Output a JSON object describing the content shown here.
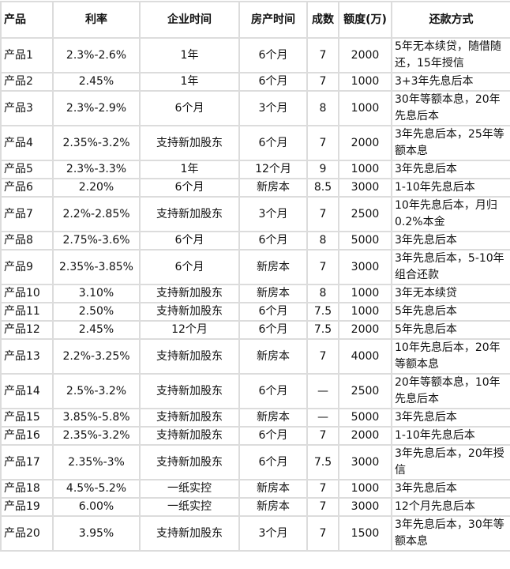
{
  "headers": [
    "产品",
    "利率",
    "企业时间",
    "房产时间",
    "成数",
    "额度(万)",
    "还款方式"
  ],
  "rows": [
    [
      "产品1",
      "2.3%-2.6%",
      "1年",
      "6个月",
      "7",
      "2000",
      "5年无本续贷，随借随还，15年授信"
    ],
    [
      "产品2",
      "2.45%",
      "1年",
      "6个月",
      "7",
      "1000",
      "3+3年先息后本"
    ],
    [
      "产品3",
      "2.3%-2.9%",
      "6个月",
      "3个月",
      "8",
      "1000",
      "30年等额本息，20年先息后本"
    ],
    [
      "产品4",
      "2.35%-3.2%",
      "支持新加股东",
      "6个月",
      "7",
      "2000",
      "3年先息后本，25年等额本息"
    ],
    [
      "产品5",
      "2.3%-3.3%",
      "1年",
      "12个月",
      "9",
      "1000",
      "3年先息后本"
    ],
    [
      "产品6",
      "2.20%",
      "6个月",
      "新房本",
      "8.5",
      "3000",
      "1-10年先息后本"
    ],
    [
      "产品7",
      "2.2%-2.85%",
      "支持新加股东",
      "3个月",
      "7",
      "2500",
      "10年先息后本，月归0.2%本金"
    ],
    [
      "产品8",
      "2.75%-3.6%",
      "6个月",
      "6个月",
      "8",
      "5000",
      "3年先息后本"
    ],
    [
      "产品9",
      "2.35%-3.85%",
      "6个月",
      "新房本",
      "7",
      "3000",
      "3年先息后本，5-10年组合还款"
    ],
    [
      "产品10",
      "3.10%",
      "支持新加股东",
      "新房本",
      "8",
      "1000",
      "3年无本续贷"
    ],
    [
      "产品11",
      "2.50%",
      "支持新加股东",
      "6个月",
      "7.5",
      "1000",
      "5年先息后本"
    ],
    [
      "产品12",
      "2.45%",
      "12个月",
      "6个月",
      "7.5",
      "2000",
      "5年先息后本"
    ],
    [
      "产品13",
      "2.2%-3.25%",
      "支持新加股东",
      "新房本",
      "7",
      "4000",
      "10年先息后本，20年等额本息"
    ],
    [
      "产品14",
      "2.5%-3.2%",
      "支持新加股东",
      "6个月",
      "—",
      "2500",
      "20年等额本息，10年先息后本"
    ],
    [
      "产品15",
      "3.85%-5.8%",
      "支持新加股东",
      "新房本",
      "—",
      "5000",
      "3年先息后本"
    ],
    [
      "产品16",
      "2.35%-3.2%",
      "支持新加股东",
      "6个月",
      "7",
      "2000",
      "1-10年先息后本"
    ],
    [
      "产品17",
      "2.35%-3%",
      "支持新加股东",
      "6个月",
      "7.5",
      "3000",
      "3年先息后本，20年授信"
    ],
    [
      "产品18",
      "4.5%-5.2%",
      "一纸实控",
      "新房本",
      "7",
      "1000",
      "3年先息后本"
    ],
    [
      "产品19",
      "6.00%",
      "一纸实控",
      "新房本",
      "7",
      "3000",
      "12个月先息后本"
    ],
    [
      "产品20",
      "3.95%",
      "支持新加股东",
      "3个月",
      "7",
      "1500",
      "3年先息后本，30年等额本息"
    ]
  ]
}
